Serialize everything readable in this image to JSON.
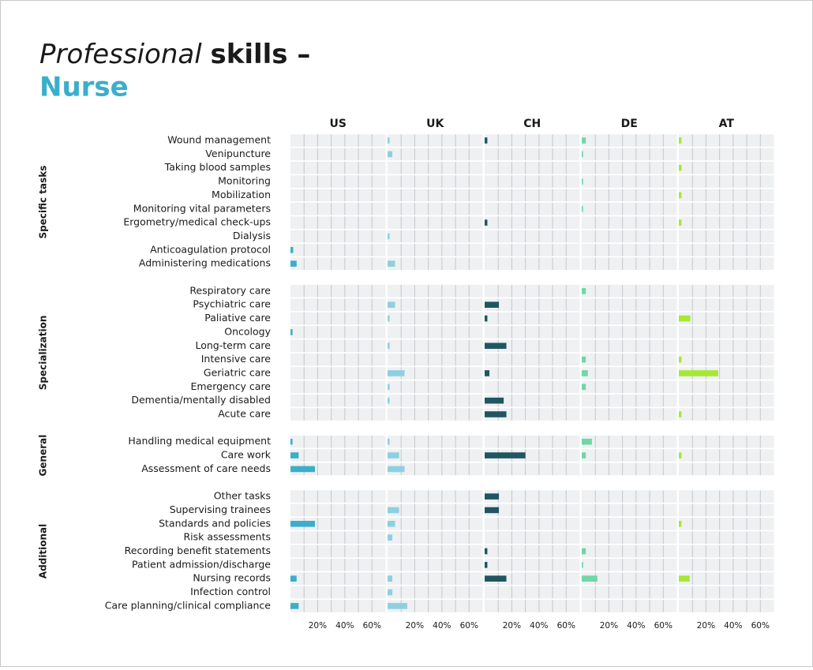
{
  "chart_data": {
    "type": "bar",
    "title_italic": "Professional",
    "title_bold": "skills –",
    "subtitle": "Nurse",
    "xlim": [
      0,
      70
    ],
    "xticks": [
      {
        "value": 20,
        "label": "20%"
      },
      {
        "value": 40,
        "label": "40%"
      },
      {
        "value": 60,
        "label": "60%"
      }
    ],
    "xgrid": [
      10,
      20,
      30,
      40,
      50,
      60
    ],
    "groups": [
      {
        "name": "Specific tasks",
        "categories": [
          "Wound management",
          "Venipuncture",
          "Taking blood samples",
          "Monitoring",
          "Mobilization",
          "Monitoring vital parameters",
          "Ergometry/medical check-ups",
          "Dialysis",
          "Anticoagulation protocol",
          "Administering medications"
        ]
      },
      {
        "name": "Specialization",
        "categories": [
          "Respiratory care",
          "Psychiatric care",
          "Paliative care",
          "Oncology",
          "Long-term care",
          "Intensive care",
          "Geriatric care",
          "Emergency care",
          "Dementia/mentally disabled",
          "Acute care"
        ]
      },
      {
        "name": "General",
        "categories": [
          "Handling medical equipment",
          "Care work",
          "Assessment of care needs"
        ]
      },
      {
        "name": "Additional",
        "categories": [
          "Other tasks",
          "Supervising trainees",
          "Standards and policies",
          "Risk assessments",
          "Recording benefit statements",
          "Patient admission/discharge",
          "Nursing records",
          "Infection control",
          "Care planning/clinical compliance"
        ]
      }
    ],
    "series": [
      {
        "name": "US",
        "color": "#3aaecb",
        "values": [
          [
            0,
            0,
            0,
            0,
            0,
            0,
            0,
            0,
            2,
            4.5
          ],
          [
            0,
            0,
            0,
            1.5,
            0,
            0,
            0,
            0,
            0,
            0
          ],
          [
            1.5,
            6,
            18
          ],
          [
            0,
            0,
            18,
            0,
            0,
            0,
            4.5,
            0,
            6
          ]
        ]
      },
      {
        "name": "UK",
        "color": "#8dd0e0",
        "values": [
          [
            1.5,
            3.5,
            0,
            0,
            0,
            0,
            0,
            1.5,
            0,
            5.5
          ],
          [
            0,
            5.5,
            1.5,
            0,
            1.5,
            0,
            12.5,
            1.5,
            1.5,
            0
          ],
          [
            1.5,
            8.5,
            12.5
          ],
          [
            0,
            8.5,
            5.5,
            3.5,
            0,
            0,
            3.5,
            3.5,
            14.5
          ]
        ]
      },
      {
        "name": "CH",
        "color": "#1f5661",
        "values": [
          [
            2,
            0,
            0,
            0,
            0,
            0,
            2,
            0,
            0,
            0
          ],
          [
            0,
            10.5,
            2,
            0,
            16,
            0,
            3.5,
            0,
            14,
            16
          ],
          [
            0,
            30,
            0
          ],
          [
            10.5,
            10.5,
            0,
            0,
            2,
            2,
            16,
            0,
            0
          ]
        ]
      },
      {
        "name": "DE",
        "color": "#6fd7a9",
        "values": [
          [
            3,
            1,
            0,
            1,
            0,
            1,
            0,
            0,
            0,
            0
          ],
          [
            3,
            0,
            0,
            0,
            0,
            3,
            4.5,
            3,
            0,
            0
          ],
          [
            7.5,
            3,
            0
          ],
          [
            0,
            0,
            0,
            0,
            3,
            1,
            11.5,
            0,
            0
          ]
        ]
      },
      {
        "name": "AT",
        "color": "#a6e834",
        "values": [
          [
            2,
            0,
            2,
            0,
            2,
            0,
            2,
            0,
            0,
            0
          ],
          [
            0,
            0,
            8.5,
            0,
            0,
            2,
            29,
            0,
            0,
            2
          ],
          [
            0,
            2,
            0
          ],
          [
            0,
            0,
            2,
            0,
            0,
            0,
            8,
            0,
            0
          ]
        ]
      }
    ]
  }
}
